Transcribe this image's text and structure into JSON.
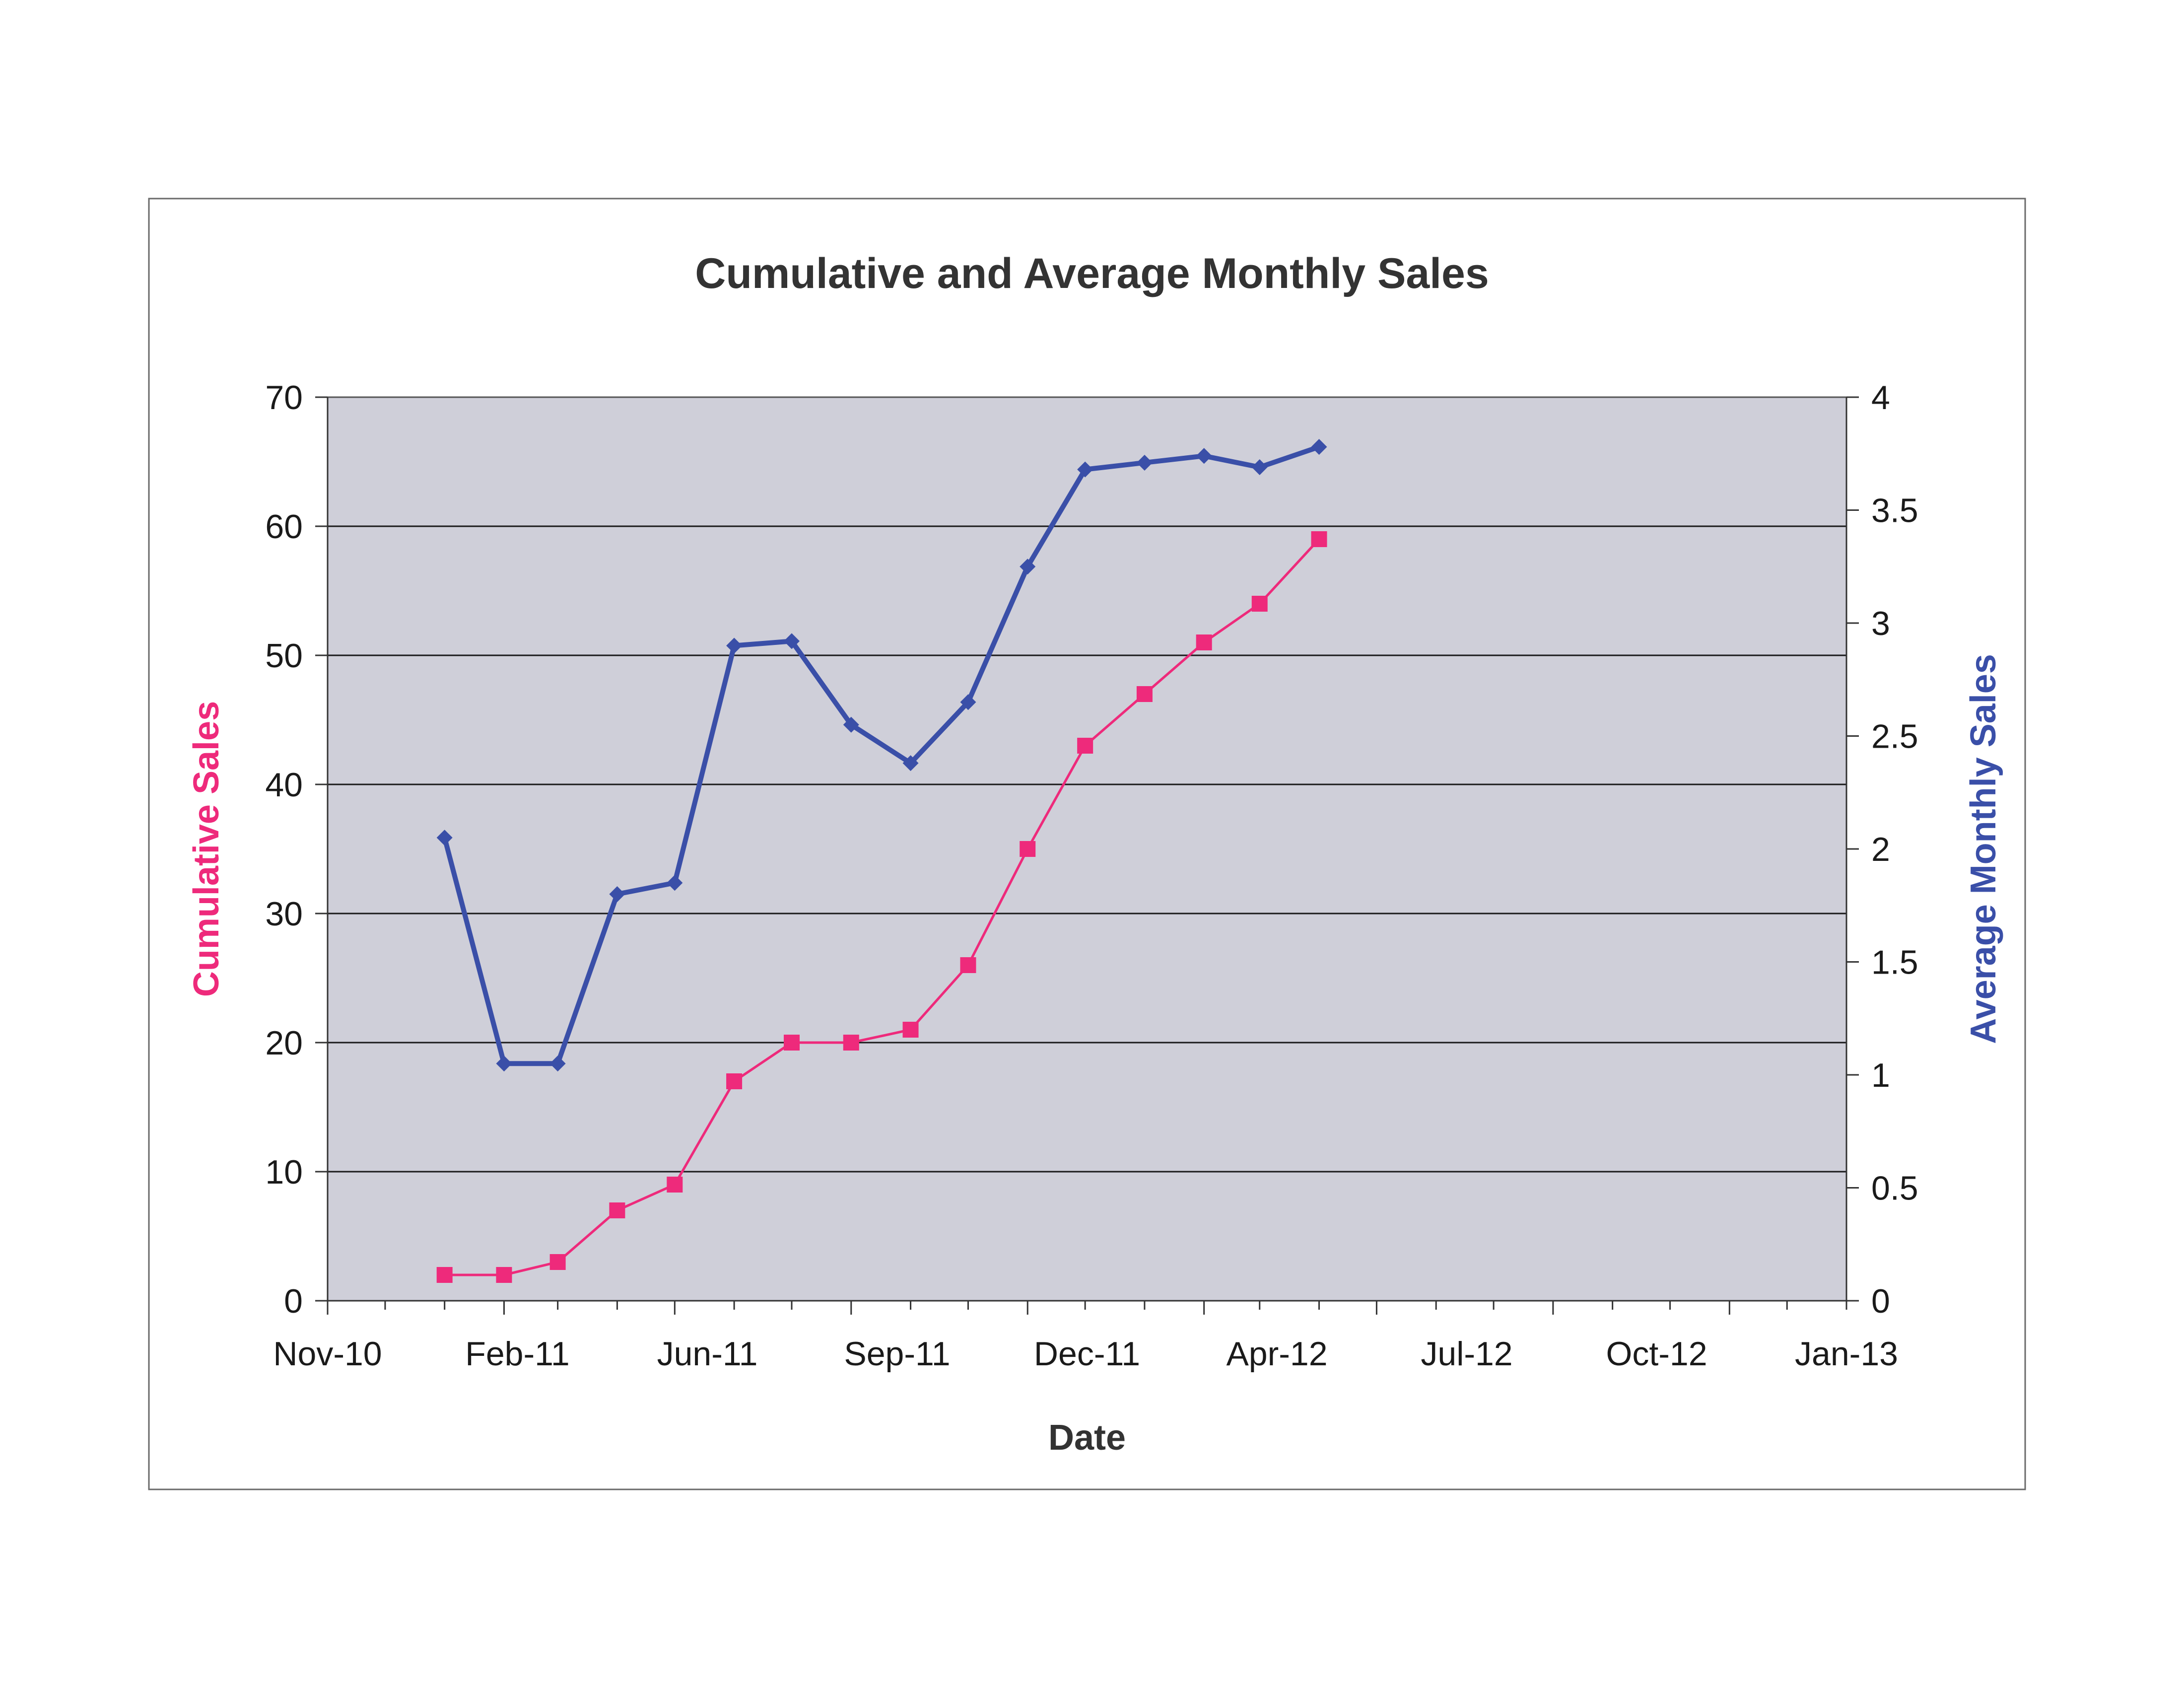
{
  "chart_data": {
    "type": "line",
    "title": "Cumulative and Average Monthly Sales",
    "xlabel": "Date",
    "ylabel": "Cumulative Sales",
    "y2label": "Average Monthly Sales",
    "x_tick_labels": [
      "Nov-10",
      "Feb-11",
      "Jun-11",
      "Sep-11",
      "Dec-11",
      "Apr-12",
      "Jul-12",
      "Oct-12",
      "Jan-13"
    ],
    "xlim": [
      "2010-11-01",
      "2013-01-01"
    ],
    "ylim": [
      0,
      70
    ],
    "y_ticks": [
      0,
      10,
      20,
      30,
      40,
      50,
      60,
      70
    ],
    "y2lim": [
      0,
      4
    ],
    "y2_ticks": [
      0,
      0.5,
      1,
      1.5,
      2,
      2.5,
      3,
      3.5,
      4
    ],
    "grid": true,
    "legend": "none",
    "colors": {
      "cumulative": "#ee2a7b",
      "average": "#3a4fa8",
      "plot_bg": "#cfcfd9",
      "cumulative_label": "#ee2a7b",
      "average_label": "#3a4fa8"
    },
    "series": [
      {
        "axis": "left",
        "marker": "square",
        "x": [
          "2011-01-01",
          "2011-02-01",
          "2011-03-01",
          "2011-04-01",
          "2011-05-01",
          "2011-06-01",
          "2011-07-01",
          "2011-08-01",
          "2011-09-01",
          "2011-10-01",
          "2011-11-01",
          "2011-12-01",
          "2012-01-01",
          "2012-02-01",
          "2012-03-01",
          "2012-04-01"
        ],
        "values": [
          2,
          2,
          3,
          7,
          9,
          17,
          20,
          20,
          21,
          26,
          35,
          43,
          47,
          51,
          54,
          59
        ]
      },
      {
        "axis": "right",
        "marker": "diamond",
        "x": [
          "2011-01-01",
          "2011-02-01",
          "2011-03-01",
          "2011-04-01",
          "2011-05-01",
          "2011-06-01",
          "2011-07-01",
          "2011-08-01",
          "2011-09-01",
          "2011-10-01",
          "2011-11-01",
          "2011-12-01",
          "2012-01-01",
          "2012-02-01",
          "2012-03-01",
          "2012-04-01"
        ],
        "values": [
          2.05,
          1.05,
          1.05,
          1.8,
          1.85,
          2.9,
          2.92,
          2.55,
          2.38,
          2.65,
          3.25,
          3.68,
          3.71,
          3.74,
          3.69,
          3.78
        ]
      }
    ]
  }
}
